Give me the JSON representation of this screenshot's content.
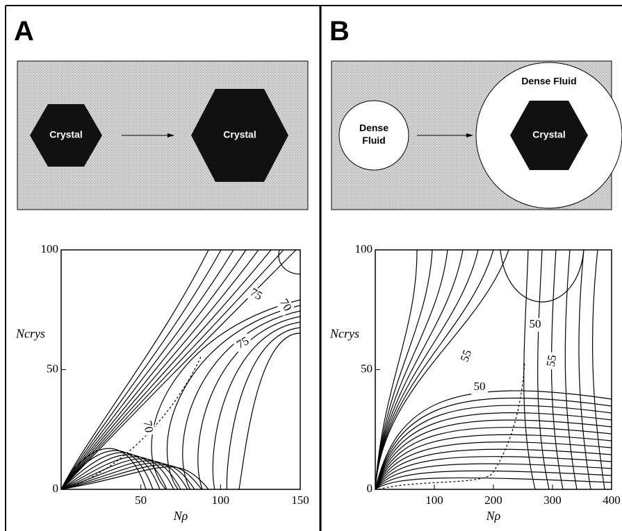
{
  "panels": [
    {
      "letter": "A",
      "schematic": {
        "left": "Crystal",
        "right": "Crystal"
      }
    },
    {
      "letter": "B",
      "schematic": {
        "left": "Dense Fluid",
        "right_outer": "Dense Fluid",
        "right_inner": "Crystal"
      }
    }
  ],
  "chart_data": [
    {
      "type": "contour",
      "xlabel": "Nρ",
      "ylabel": "Ncrys",
      "xlim": [
        0,
        150
      ],
      "ylim": [
        0,
        100
      ],
      "xticks": [
        50,
        100,
        150
      ],
      "yticks": [
        0,
        50,
        100
      ],
      "contour_labels": [
        75,
        70,
        75,
        70
      ]
    },
    {
      "type": "contour",
      "xlabel": "Nρ",
      "ylabel": "Ncrys",
      "xlim": [
        0,
        400
      ],
      "ylim": [
        0,
        100
      ],
      "xticks": [
        100,
        200,
        300,
        400
      ],
      "yticks": [
        0,
        50,
        100
      ],
      "contour_labels": [
        50,
        55,
        55,
        50
      ]
    }
  ]
}
